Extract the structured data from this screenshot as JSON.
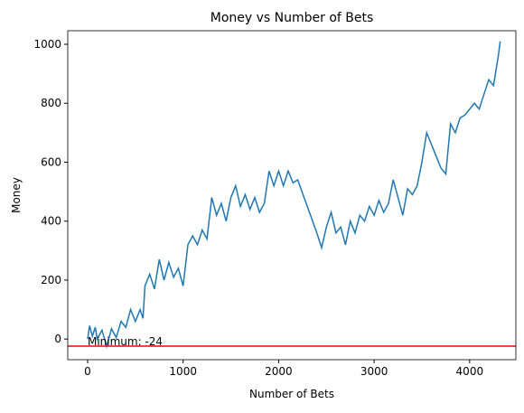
{
  "chart_data": {
    "type": "line",
    "title": "Money vs Number of Bets",
    "x_label": "Number of Bets",
    "y_label": "Money",
    "x": [
      0,
      20,
      50,
      80,
      100,
      150,
      200,
      250,
      300,
      350,
      400,
      450,
      500,
      550,
      580,
      600,
      650,
      700,
      750,
      800,
      850,
      900,
      950,
      1000,
      1050,
      1100,
      1150,
      1200,
      1250,
      1300,
      1350,
      1400,
      1450,
      1500,
      1550,
      1600,
      1650,
      1700,
      1750,
      1800,
      1850,
      1900,
      1950,
      2000,
      2050,
      2100,
      2150,
      2200,
      2300,
      2400,
      2450,
      2500,
      2550,
      2600,
      2650,
      2700,
      2750,
      2800,
      2850,
      2900,
      2950,
      3000,
      3050,
      3100,
      3150,
      3200,
      3250,
      3300,
      3350,
      3400,
      3450,
      3500,
      3550,
      3600,
      3650,
      3700,
      3750,
      3800,
      3850,
      3900,
      3950,
      4000,
      4050,
      4100,
      4150,
      4200,
      4250,
      4300,
      4320
    ],
    "series": [
      {
        "name": "Money",
        "color": "#1f77b4",
        "values": [
          0,
          45,
          10,
          40,
          0,
          30,
          -24,
          35,
          5,
          60,
          40,
          100,
          60,
          100,
          70,
          180,
          220,
          170,
          270,
          200,
          260,
          210,
          240,
          180,
          320,
          350,
          320,
          370,
          340,
          480,
          420,
          460,
          400,
          480,
          520,
          450,
          490,
          440,
          480,
          430,
          460,
          570,
          520,
          570,
          520,
          570,
          530,
          540,
          450,
          360,
          310,
          380,
          430,
          360,
          380,
          320,
          400,
          360,
          420,
          400,
          450,
          420,
          470,
          430,
          460,
          540,
          480,
          420,
          510,
          490,
          520,
          600,
          700,
          660,
          620,
          580,
          560,
          730,
          700,
          750,
          760,
          780,
          800,
          780,
          830,
          880,
          860,
          960,
          1010
        ]
      }
    ],
    "hline": {
      "value": -24,
      "color": "#ff0000"
    },
    "annotation": "Minimum: -24",
    "xlim": [
      -208,
      4484
    ],
    "ylim": [
      -70,
      1046
    ],
    "xticks": [
      0,
      1000,
      2000,
      3000,
      4000
    ],
    "yticks": [
      0,
      200,
      400,
      600,
      800,
      1000
    ]
  }
}
